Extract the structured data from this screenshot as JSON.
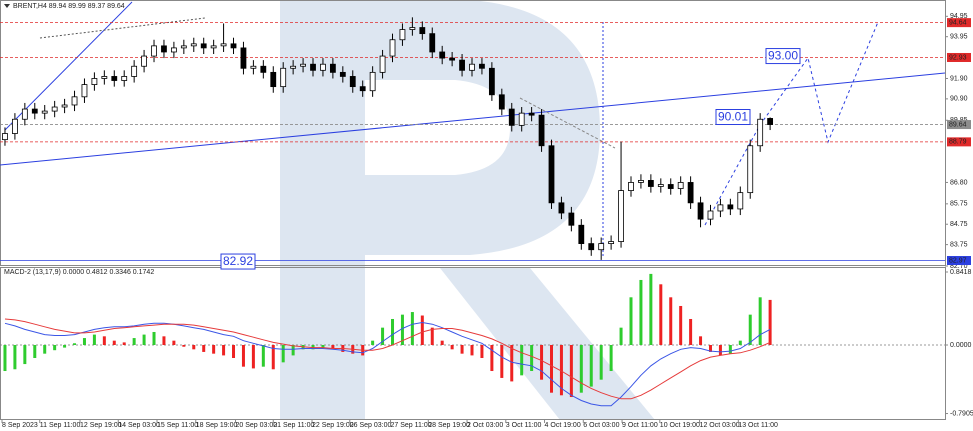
{
  "chart_data": [
    {
      "type": "candlestick",
      "title": "BRENT,H4 89.94 89.99 89.37 89.64",
      "open": [
        88.9,
        89.2,
        89.9,
        90.4,
        90.2,
        90.3,
        90.5,
        90.6,
        91.0,
        91.6,
        91.9,
        92.0,
        91.8,
        92.0,
        92.5,
        93.0,
        93.5,
        93.2,
        93.4,
        93.5,
        93.6,
        93.4,
        93.5,
        93.6,
        93.4,
        92.4,
        92.5,
        92.2,
        91.5,
        92.4,
        92.5,
        92.6,
        92.3,
        92.6,
        92.2,
        92.0,
        91.5,
        91.3,
        92.2,
        93.0,
        93.8,
        94.3,
        94.4,
        94.1,
        93.2,
        92.9,
        92.8,
        92.3,
        92.6,
        92.4,
        91.1,
        90.4,
        89.6,
        90.2,
        90.1,
        88.6,
        85.8,
        85.3,
        84.7,
        83.8,
        83.5,
        83.8,
        83.9,
        86.4,
        86.8,
        86.9,
        86.6,
        86.7,
        86.5,
        86.8,
        85.8,
        85.0,
        85.4,
        85.7,
        85.5,
        86.3,
        88.6,
        89.94
      ],
      "high": [
        89.5,
        90.2,
        90.7,
        90.7,
        90.6,
        90.8,
        90.9,
        91.3,
        91.9,
        92.2,
        92.3,
        92.3,
        92.3,
        92.8,
        93.3,
        93.8,
        93.8,
        93.7,
        93.8,
        93.9,
        93.9,
        93.8,
        94.6,
        93.9,
        93.7,
        92.8,
        92.8,
        92.5,
        92.7,
        92.8,
        92.9,
        92.9,
        92.9,
        92.9,
        92.5,
        92.3,
        91.8,
        92.5,
        93.3,
        94.1,
        94.6,
        94.9,
        94.7,
        94.4,
        93.5,
        93.2,
        93.1,
        92.9,
        92.9,
        92.7,
        91.4,
        90.7,
        90.5,
        90.5,
        90.4,
        88.9,
        86.1,
        85.6,
        85.0,
        84.1,
        84.1,
        84.2,
        88.8,
        87.1,
        87.2,
        87.2,
        87.0,
        87.0,
        87.1,
        87.1,
        86.1,
        85.7,
        86.0,
        86.0,
        86.6,
        88.9,
        90.2,
        89.99
      ],
      "low": [
        88.6,
        88.9,
        89.6,
        89.9,
        89.9,
        90.0,
        90.2,
        90.3,
        90.7,
        91.3,
        91.6,
        91.5,
        91.5,
        91.7,
        92.2,
        92.7,
        92.9,
        92.9,
        93.1,
        93.2,
        93.1,
        93.1,
        93.2,
        93.1,
        92.1,
        92.1,
        91.9,
        91.2,
        91.2,
        92.1,
        92.2,
        92.0,
        92.0,
        91.9,
        91.7,
        91.2,
        91.0,
        91.0,
        91.9,
        92.7,
        93.5,
        94.0,
        93.8,
        92.9,
        92.6,
        92.5,
        92.0,
        92.0,
        92.1,
        90.8,
        90.1,
        89.3,
        89.3,
        89.8,
        88.3,
        85.5,
        85.0,
        84.4,
        83.5,
        83.2,
        83.0,
        83.5,
        83.6,
        86.1,
        86.5,
        86.3,
        86.3,
        86.2,
        86.2,
        85.5,
        84.6,
        84.7,
        85.1,
        85.2,
        85.2,
        86.0,
        88.3,
        89.37
      ],
      "close": [
        89.2,
        89.9,
        90.4,
        90.2,
        90.3,
        90.5,
        90.6,
        91.0,
        91.6,
        91.9,
        92.0,
        91.8,
        92.0,
        92.5,
        93.0,
        93.5,
        93.2,
        93.4,
        93.5,
        93.6,
        93.4,
        93.5,
        93.6,
        93.4,
        92.4,
        92.5,
        92.2,
        91.5,
        92.4,
        92.5,
        92.6,
        92.3,
        92.6,
        92.2,
        92.0,
        91.5,
        91.3,
        92.2,
        93.0,
        93.8,
        94.3,
        94.4,
        94.1,
        93.2,
        92.9,
        92.8,
        92.3,
        92.6,
        92.4,
        91.1,
        90.4,
        89.6,
        90.2,
        90.1,
        88.6,
        85.8,
        85.3,
        84.7,
        83.8,
        83.5,
        83.8,
        83.9,
        86.4,
        86.8,
        86.9,
        86.6,
        86.7,
        86.5,
        86.8,
        85.8,
        85.0,
        85.4,
        85.7,
        85.5,
        86.3,
        88.6,
        89.9,
        89.64
      ],
      "up_color": "#ffffff",
      "down_color": "#000000",
      "xlim": [
        -0.5,
        94.6
      ],
      "ylim": [
        82.75,
        95.75
      ],
      "yticks": [
        94.95,
        93.95,
        {
          "value": 91.9,
          "label": "91.90"
        },
        {
          "value": 90.9,
          "label": "90.90"
        },
        89.85,
        {
          "value": 86.8,
          "label": "86.80"
        },
        85.75,
        84.75,
        83.75,
        {
          "value": 82.7,
          "label": "82.70"
        }
      ],
      "levels": [
        {
          "value": 94.64,
          "color": "#e02a2a"
        },
        {
          "value": 92.93,
          "color": "#e02a2a"
        },
        {
          "value": 89.64,
          "color": "#8c8c8c"
        },
        {
          "value": 88.79,
          "color": "#e02a2a"
        },
        {
          "value": 82.97,
          "color": "#2b3fe0"
        }
      ],
      "annotations": [
        {
          "value": 93,
          "label": "93.00"
        },
        {
          "value": 90.01,
          "label": "90.01"
        },
        {
          "value": 82.92,
          "label": "82.92"
        }
      ]
    },
    {
      "type": "macd",
      "title": "MACD-2 (13,17,9) 0.0000 0.4812 0.3346 0.1742",
      "histogram": [
        -0.3,
        -0.28,
        -0.22,
        -0.15,
        -0.1,
        -0.06,
        -0.03,
        0.02,
        0.08,
        0.12,
        0.1,
        0.05,
        0.03,
        0.08,
        0.12,
        0.15,
        0.1,
        0.05,
        -0.02,
        -0.05,
        -0.08,
        -0.1,
        -0.12,
        -0.15,
        -0.25,
        -0.27,
        -0.25,
        -0.28,
        -0.2,
        -0.12,
        -0.05,
        -0.05,
        -0.03,
        -0.05,
        -0.08,
        -0.1,
        -0.12,
        0.05,
        0.2,
        0.3,
        0.35,
        0.38,
        0.34,
        0.2,
        0.05,
        -0.05,
        -0.1,
        -0.12,
        -0.15,
        -0.3,
        -0.38,
        -0.42,
        -0.35,
        -0.3,
        -0.4,
        -0.55,
        -0.58,
        -0.6,
        -0.55,
        -0.48,
        -0.4,
        -0.3,
        0.2,
        0.55,
        0.75,
        0.82,
        0.7,
        0.55,
        0.45,
        0.3,
        0.1,
        -0.08,
        -0.12,
        -0.1,
        0.05,
        0.35,
        0.55,
        0.52
      ],
      "up_color": "#2ecc2e",
      "down_color": "#ee2222",
      "series": [
        {
          "color": "#3b56e6",
          "values": [
            0.25,
            0.22,
            0.18,
            0.15,
            0.12,
            0.11,
            0.11,
            0.12,
            0.15,
            0.18,
            0.2,
            0.21,
            0.21,
            0.22,
            0.24,
            0.25,
            0.25,
            0.24,
            0.22,
            0.2,
            0.18,
            0.15,
            0.12,
            0.1,
            0.05,
            0.02,
            -0.01,
            -0.04,
            -0.05,
            -0.05,
            -0.04,
            -0.04,
            -0.04,
            -0.05,
            -0.06,
            -0.08,
            -0.09,
            -0.04,
            0.04,
            0.12,
            0.19,
            0.24,
            0.26,
            0.24,
            0.2,
            0.15,
            0.1,
            0.06,
            0.02,
            -0.06,
            -0.14,
            -0.2,
            -0.22,
            -0.24,
            -0.3,
            -0.4,
            -0.5,
            -0.58,
            -0.64,
            -0.68,
            -0.7,
            -0.7,
            -0.6,
            -0.48,
            -0.35,
            -0.24,
            -0.16,
            -0.1,
            -0.05,
            -0.03,
            -0.04,
            -0.07,
            -0.08,
            -0.07,
            -0.04,
            0.03,
            0.12,
            0.18
          ]
        },
        {
          "color": "#e63b3b",
          "values": [
            0.3,
            0.29,
            0.27,
            0.24,
            0.21,
            0.18,
            0.16,
            0.14,
            0.14,
            0.15,
            0.17,
            0.19,
            0.2,
            0.21,
            0.22,
            0.23,
            0.24,
            0.24,
            0.24,
            0.23,
            0.21,
            0.19,
            0.17,
            0.15,
            0.12,
            0.09,
            0.06,
            0.03,
            0.01,
            -0.01,
            -0.02,
            -0.03,
            -0.03,
            -0.04,
            -0.04,
            -0.05,
            -0.06,
            -0.06,
            -0.04,
            0.0,
            0.05,
            0.1,
            0.15,
            0.18,
            0.19,
            0.19,
            0.17,
            0.14,
            0.11,
            0.07,
            0.02,
            -0.04,
            -0.09,
            -0.13,
            -0.18,
            -0.24,
            -0.3,
            -0.37,
            -0.44,
            -0.5,
            -0.55,
            -0.59,
            -0.62,
            -0.62,
            -0.58,
            -0.52,
            -0.45,
            -0.38,
            -0.31,
            -0.24,
            -0.18,
            -0.14,
            -0.12,
            -0.1,
            -0.09,
            -0.06,
            -0.02,
            0.03
          ]
        }
      ],
      "xlim": [
        -0.5,
        94.6
      ],
      "ylim": [
        -0.865,
        0.888
      ],
      "yticks": [
        0.8418,
        {
          "value": 0,
          "label": "0.0000"
        },
        -0.7905
      ],
      "xticks": [
        {
          "value": -0.3,
          "label": "8 Sep 2023"
        },
        {
          "value": 3.5,
          "label": "11 Sep 11:00"
        },
        {
          "value": 7.55,
          "label": "12 Sep 19:00"
        },
        {
          "value": 11.4,
          "label": "14 Sep 03:00"
        },
        {
          "value": 15.3,
          "label": "15 Sep 11:00"
        },
        {
          "value": 19.2,
          "label": "18 Sep 19:00"
        },
        {
          "value": 23.2,
          "label": "20 Sep 03:00"
        },
        {
          "value": 27.0,
          "label": "21 Sep 11:00"
        },
        {
          "value": 30.9,
          "label": "22 Sep 19:00"
        },
        {
          "value": 34.7,
          "label": "26 Sep 03:00"
        },
        {
          "value": 38.8,
          "label": "27 Sep 11:00"
        },
        {
          "value": 42.6,
          "label": "28 Sep 19:00"
        },
        {
          "value": 46.5,
          "label": "2 Oct 03:00"
        },
        {
          "value": 50.4,
          "label": "3 Oct 11:00"
        },
        {
          "value": 54.3,
          "label": "4 Oct 19:00"
        },
        {
          "value": 58.2,
          "label": "6 Oct 03:00"
        },
        {
          "value": 62.1,
          "label": "9 Oct 11:00"
        },
        {
          "value": 65.9,
          "label": "10 Oct 19:00"
        },
        {
          "value": 69.9,
          "label": "12 Oct 03:00"
        },
        {
          "value": 73.8,
          "label": "13 Oct 11:00"
        }
      ]
    }
  ]
}
